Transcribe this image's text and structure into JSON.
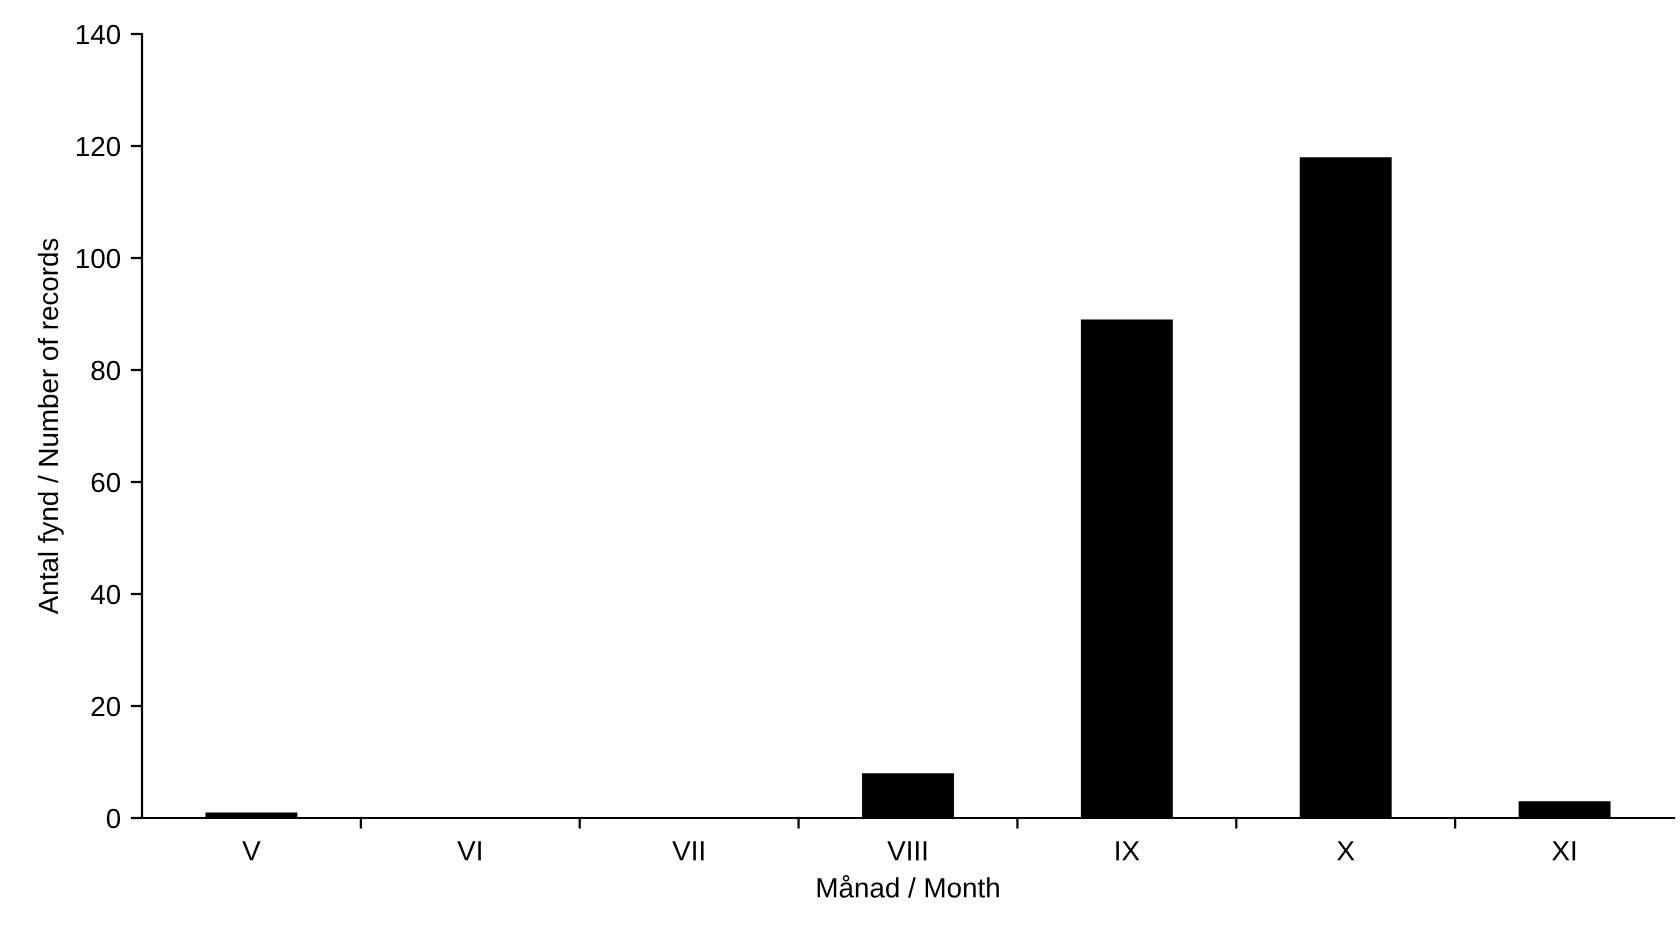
{
  "chart_data": {
    "type": "bar",
    "xlabel": "Månad / Month",
    "ylabel": "Antal fynd / Number of records",
    "categories": [
      "V",
      "VI",
      "VII",
      "VIII",
      "IX",
      "X",
      "XI"
    ],
    "values": [
      1,
      0,
      0,
      8,
      89,
      118,
      3
    ],
    "color": "#000000",
    "ylim": [
      0,
      140
    ],
    "yticks": [
      0,
      20,
      40,
      60,
      80,
      100,
      120,
      140
    ],
    "grid": false,
    "legend": false
  }
}
